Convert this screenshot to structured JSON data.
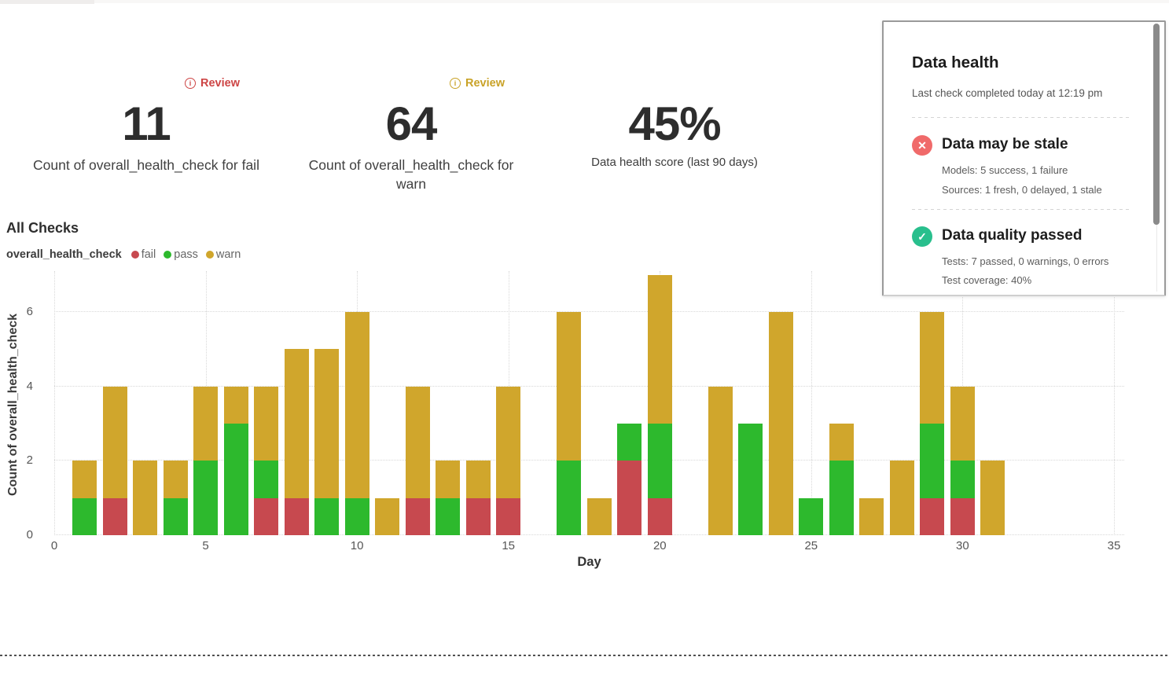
{
  "kpis": [
    {
      "badge_label": "Review",
      "value": "11",
      "label": "Count of overall_health_check for fail"
    },
    {
      "badge_label": "Review",
      "value": "64",
      "label": "Count of overall_health_check for warn"
    },
    {
      "value": "45%",
      "label": "Data health score (last 90 days)"
    }
  ],
  "chart": {
    "title": "All Checks",
    "legend_series_name": "overall_health_check",
    "xlabel": "Day",
    "ylabel": "Count of overall_health_check"
  },
  "chart_data": {
    "type": "bar",
    "stacked": true,
    "title": "All Checks",
    "xlabel": "Day",
    "ylabel": "Count of overall_health_check",
    "xlim": [
      0,
      35.3
    ],
    "ylim": [
      0,
      7.1
    ],
    "x_ticks": [
      0,
      5,
      10,
      15,
      20,
      25,
      30,
      35
    ],
    "y_ticks": [
      0,
      2,
      4,
      6
    ],
    "grid": "dotted",
    "legend_position": "top-left",
    "stack_order": [
      "fail",
      "pass",
      "warn"
    ],
    "colors": {
      "fail": "#c7494f",
      "pass": "#2db92d",
      "warn": "#d0a62c"
    },
    "series_labels": [
      "fail",
      "pass",
      "warn"
    ],
    "days": [
      {
        "day": 1,
        "fail": 0,
        "pass": 1,
        "warn": 1
      },
      {
        "day": 2,
        "fail": 1,
        "pass": 0,
        "warn": 3
      },
      {
        "day": 3,
        "fail": 0,
        "pass": 0,
        "warn": 2
      },
      {
        "day": 4,
        "fail": 0,
        "pass": 1,
        "warn": 1
      },
      {
        "day": 5,
        "fail": 0,
        "pass": 2,
        "warn": 2
      },
      {
        "day": 6,
        "fail": 0,
        "pass": 3,
        "warn": 1
      },
      {
        "day": 7,
        "fail": 1,
        "pass": 1,
        "warn": 2
      },
      {
        "day": 8,
        "fail": 1,
        "pass": 0,
        "warn": 4
      },
      {
        "day": 9,
        "fail": 0,
        "pass": 1,
        "warn": 4
      },
      {
        "day": 10,
        "fail": 0,
        "pass": 1,
        "warn": 5
      },
      {
        "day": 11,
        "fail": 0,
        "pass": 0,
        "warn": 1
      },
      {
        "day": 12,
        "fail": 1,
        "pass": 0,
        "warn": 3
      },
      {
        "day": 13,
        "fail": 0,
        "pass": 1,
        "warn": 1
      },
      {
        "day": 14,
        "fail": 1,
        "pass": 0,
        "warn": 1
      },
      {
        "day": 15,
        "fail": 1,
        "pass": 0,
        "warn": 3
      },
      {
        "day": 16,
        "fail": 0,
        "pass": 0,
        "warn": 0
      },
      {
        "day": 17,
        "fail": 0,
        "pass": 2,
        "warn": 4
      },
      {
        "day": 18,
        "fail": 0,
        "pass": 0,
        "warn": 1
      },
      {
        "day": 19,
        "fail": 2,
        "pass": 1,
        "warn": 0
      },
      {
        "day": 20,
        "fail": 1,
        "pass": 2,
        "warn": 4
      },
      {
        "day": 21,
        "fail": 0,
        "pass": 0,
        "warn": 0
      },
      {
        "day": 22,
        "fail": 0,
        "pass": 0,
        "warn": 4
      },
      {
        "day": 23,
        "fail": 0,
        "pass": 3,
        "warn": 0
      },
      {
        "day": 24,
        "fail": 0,
        "pass": 0,
        "warn": 6
      },
      {
        "day": 25,
        "fail": 0,
        "pass": 1,
        "warn": 0
      },
      {
        "day": 26,
        "fail": 0,
        "pass": 2,
        "warn": 1
      },
      {
        "day": 27,
        "fail": 0,
        "pass": 0,
        "warn": 1
      },
      {
        "day": 28,
        "fail": 0,
        "pass": 0,
        "warn": 2
      },
      {
        "day": 29,
        "fail": 1,
        "pass": 2,
        "warn": 3
      },
      {
        "day": 30,
        "fail": 1,
        "pass": 1,
        "warn": 2
      },
      {
        "day": 31,
        "fail": 0,
        "pass": 0,
        "warn": 2
      }
    ]
  },
  "panel": {
    "title": "Data health",
    "subtitle": "Last check completed today at 12:19 pm",
    "sections": [
      {
        "title": "Data may be stale",
        "icon": "x-circle",
        "icon_color": "#f06a6a",
        "lines": [
          "Models: 5 success, 1 failure",
          "Sources: 1 fresh, 0 delayed, 1 stale"
        ]
      },
      {
        "title": "Data quality passed",
        "icon": "check-circle",
        "icon_color": "#29bf8d",
        "lines": [
          "Tests: 7 passed, 0 warnings, 0 errors",
          "Test coverage: 40%"
        ]
      }
    ]
  }
}
